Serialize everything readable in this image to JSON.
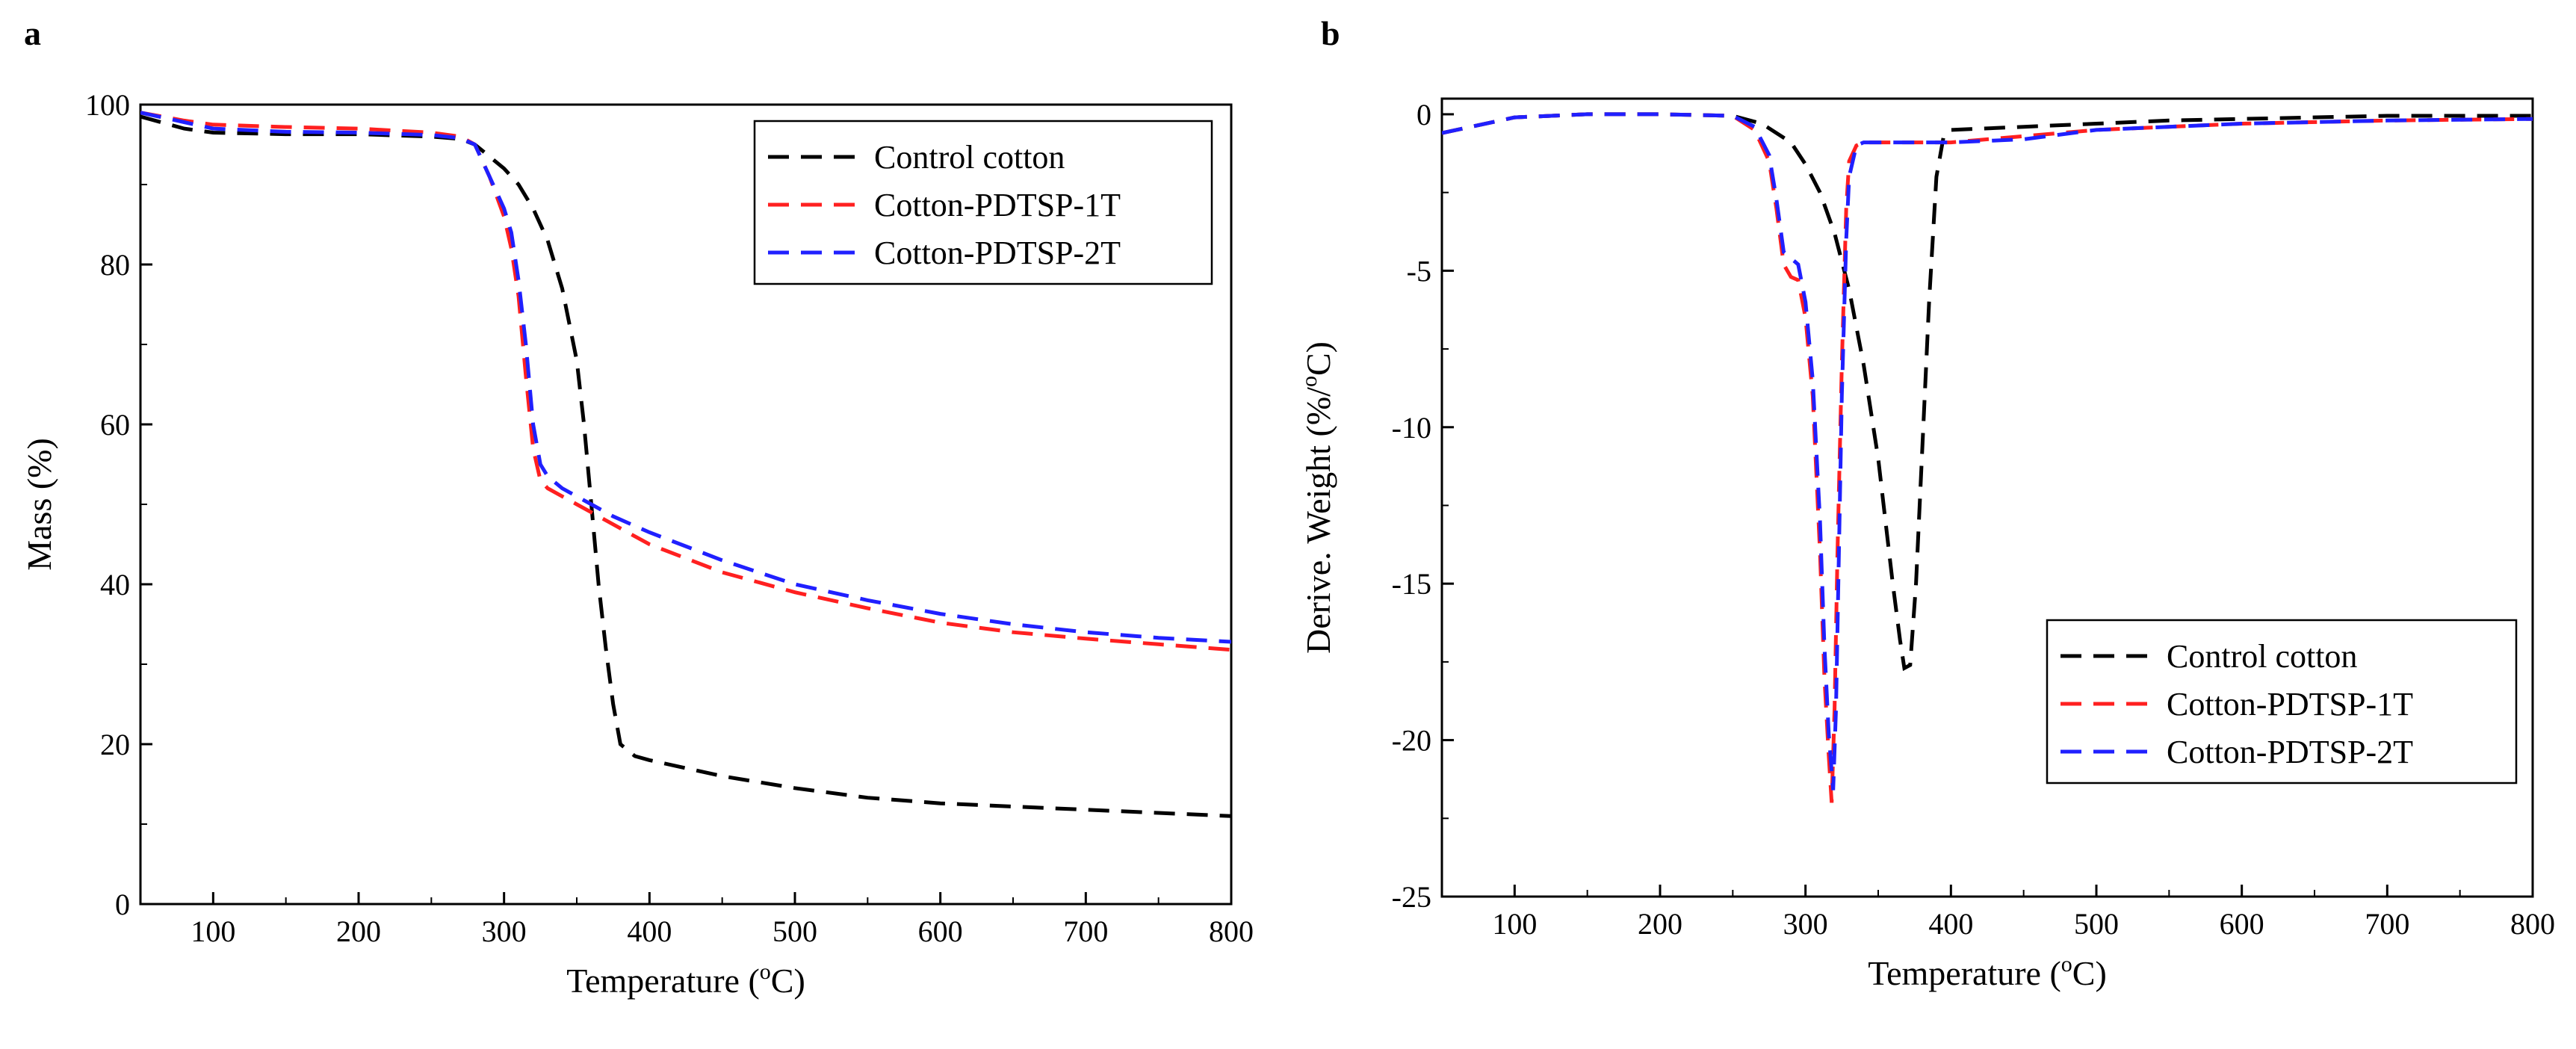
{
  "chart_data": [
    {
      "panel": "a",
      "type": "line",
      "xlabel": "Temperature (°C)",
      "ylabel": "Mass (%)",
      "xlim": [
        50,
        800
      ],
      "ylim": [
        0,
        100
      ],
      "xticks": [
        100,
        200,
        300,
        400,
        500,
        600,
        700,
        800
      ],
      "yticks": [
        0,
        20,
        40,
        60,
        80,
        100
      ],
      "legend_position": "top-right",
      "grid": false,
      "series": [
        {
          "name": "Control cotton",
          "color": "#000000",
          "dash": "dashed",
          "x": [
            50,
            80,
            100,
            150,
            200,
            250,
            270,
            280,
            290,
            300,
            310,
            320,
            330,
            340,
            350,
            355,
            360,
            365,
            370,
            375,
            380,
            390,
            400,
            450,
            500,
            550,
            600,
            650,
            700,
            750,
            800
          ],
          "y": [
            98.5,
            97,
            96.5,
            96.3,
            96.3,
            96,
            95.7,
            95,
            93.5,
            92,
            90,
            87,
            83,
            77,
            68,
            60,
            50,
            40,
            32,
            25,
            20,
            18.5,
            18,
            16,
            14.5,
            13.3,
            12.6,
            12.2,
            11.8,
            11.4,
            11
          ]
        },
        {
          "name": "Cotton-PDTSP-1T",
          "color": "#ff2020",
          "dash": "dashed",
          "x": [
            50,
            80,
            100,
            150,
            200,
            250,
            270,
            280,
            290,
            300,
            305,
            310,
            315,
            320,
            325,
            330,
            340,
            350,
            360,
            375,
            400,
            450,
            500,
            550,
            600,
            650,
            700,
            750,
            800
          ],
          "y": [
            99,
            98,
            97.5,
            97.2,
            97,
            96.5,
            96,
            95,
            91,
            86,
            82,
            76,
            66,
            57,
            53,
            52,
            51,
            50,
            49,
            47.5,
            45,
            41.5,
            39,
            37,
            35.2,
            34,
            33.2,
            32.5,
            31.8
          ]
        },
        {
          "name": "Cotton-PDTSP-2T",
          "color": "#2020ff",
          "dash": "dashed",
          "x": [
            50,
            80,
            100,
            150,
            200,
            250,
            270,
            280,
            290,
            300,
            305,
            310,
            315,
            320,
            325,
            330,
            340,
            350,
            360,
            375,
            400,
            450,
            500,
            550,
            600,
            650,
            700,
            750,
            800
          ],
          "y": [
            99,
            97.8,
            97,
            96.6,
            96.5,
            96.2,
            95.8,
            95,
            91,
            87,
            84,
            78,
            70,
            60,
            55,
            53.5,
            52,
            51,
            50,
            48.5,
            46.5,
            43,
            40,
            38,
            36.3,
            35,
            34,
            33.3,
            32.8
          ]
        }
      ]
    },
    {
      "panel": "b",
      "type": "line",
      "xlabel": "Temperature (°C)",
      "ylabel": "Derive. Weight (%/°C)",
      "xlim": [
        50,
        800
      ],
      "ylim": [
        -25,
        0.5
      ],
      "xticks": [
        100,
        200,
        300,
        400,
        500,
        600,
        700,
        800
      ],
      "yticks": [
        0,
        -5,
        -10,
        -15,
        -20,
        -25
      ],
      "legend_position": "bottom-right",
      "grid": false,
      "series": [
        {
          "name": "Control cotton",
          "color": "#000000",
          "dash": "dashed",
          "x": [
            50,
            70,
            100,
            150,
            200,
            250,
            270,
            290,
            300,
            310,
            320,
            330,
            340,
            350,
            355,
            360,
            365,
            368,
            372,
            376,
            380,
            385,
            390,
            395,
            400,
            450,
            500,
            550,
            600,
            700,
            800
          ],
          "y": [
            -0.6,
            -0.4,
            -0.1,
            0,
            0,
            -0.05,
            -0.3,
            -0.9,
            -1.6,
            -2.5,
            -3.8,
            -5.6,
            -8,
            -11,
            -13,
            -15,
            -16.8,
            -17.7,
            -17.6,
            -15,
            -11,
            -6,
            -2,
            -0.7,
            -0.5,
            -0.4,
            -0.3,
            -0.2,
            -0.15,
            -0.05,
            -0.05
          ]
        },
        {
          "name": "Cotton-PDTSP-1T",
          "color": "#ff2020",
          "dash": "dashed",
          "x": [
            50,
            70,
            100,
            150,
            200,
            250,
            265,
            275,
            280,
            285,
            290,
            295,
            300,
            305,
            310,
            313,
            316,
            318,
            320,
            322,
            325,
            328,
            330,
            335,
            340,
            400,
            450,
            500,
            600,
            700,
            800
          ],
          "y": [
            -0.6,
            -0.4,
            -0.1,
            0,
            0,
            -0.05,
            -0.5,
            -1.5,
            -3,
            -4.8,
            -5.2,
            -5.3,
            -6.5,
            -9,
            -14,
            -18,
            -20.5,
            -22,
            -19,
            -14,
            -8,
            -3,
            -1.5,
            -1,
            -0.9,
            -0.9,
            -0.7,
            -0.5,
            -0.3,
            -0.2,
            -0.15
          ]
        },
        {
          "name": "Cotton-PDTSP-2T",
          "color": "#2020ff",
          "dash": "dashed",
          "x": [
            50,
            70,
            100,
            150,
            200,
            250,
            265,
            275,
            280,
            285,
            290,
            295,
            300,
            305,
            310,
            313,
            316,
            319,
            321,
            323,
            325,
            328,
            330,
            335,
            340,
            400,
            450,
            500,
            600,
            700,
            800
          ],
          "y": [
            -0.6,
            -0.4,
            -0.1,
            0,
            0,
            -0.05,
            -0.4,
            -1.3,
            -2.7,
            -4.4,
            -4.6,
            -4.8,
            -6,
            -8.5,
            -13,
            -17,
            -19.8,
            -21.6,
            -19,
            -14,
            -9,
            -4,
            -2,
            -1,
            -0.9,
            -0.9,
            -0.8,
            -0.5,
            -0.3,
            -0.2,
            -0.15
          ]
        }
      ]
    }
  ]
}
